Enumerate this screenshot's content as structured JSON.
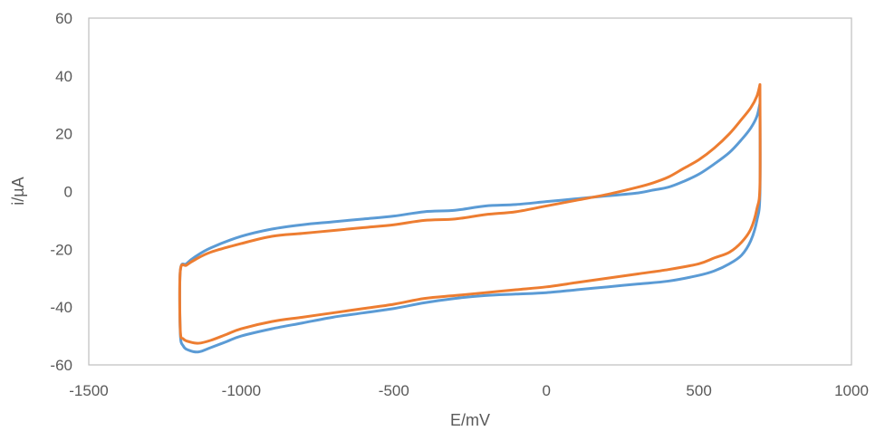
{
  "chart_data": {
    "type": "line",
    "title": "",
    "xlabel": "E/mV",
    "ylabel": "i/µA",
    "xlim": [
      -1500,
      1000
    ],
    "ylim": [
      -60,
      60
    ],
    "xticks": [
      -1500,
      -1000,
      -500,
      0,
      500,
      1000
    ],
    "yticks": [
      -60,
      -40,
      -20,
      0,
      20,
      40,
      60
    ],
    "grid": false,
    "legend": "none",
    "series": [
      {
        "color": "#5b9bd5",
        "x": [
          700,
          690,
          670,
          640,
          600,
          550,
          500,
          450,
          400,
          350,
          300,
          200,
          100,
          0,
          -100,
          -200,
          -300,
          -400,
          -500,
          -600,
          -700,
          -800,
          -900,
          -1000,
          -1100,
          -1150,
          -1180,
          -1200,
          -1200,
          -1190,
          -1170,
          -1140,
          -1100,
          -1050,
          -1000,
          -900,
          -800,
          -700,
          -600,
          -500,
          -400,
          -300,
          -200,
          -100,
          0,
          100,
          200,
          300,
          400,
          500,
          550,
          600,
          640,
          670,
          690,
          700,
          700
        ],
        "y": [
          30.5,
          26,
          22,
          18,
          13.5,
          9.5,
          6,
          3.5,
          1.5,
          0.5,
          -0.5,
          -1.5,
          -2.5,
          -3.5,
          -4.5,
          -5,
          -6.5,
          -7,
          -8.5,
          -9.5,
          -10.5,
          -11.5,
          -13,
          -15.5,
          -19.5,
          -22.5,
          -25,
          -27.5,
          -49,
          -53.5,
          -55,
          -55.5,
          -54,
          -52,
          -50,
          -47.5,
          -45.5,
          -43.5,
          -42,
          -40.5,
          -38.5,
          -37,
          -36,
          -35.5,
          -35,
          -34,
          -33,
          -32,
          -31,
          -29,
          -27.5,
          -25,
          -22,
          -17,
          -10,
          -1,
          31
        ]
      },
      {
        "color": "#ed7d31",
        "x": [
          700,
          690,
          670,
          640,
          600,
          550,
          500,
          450,
          400,
          350,
          300,
          200,
          100,
          0,
          -100,
          -200,
          -300,
          -400,
          -500,
          -600,
          -700,
          -800,
          -900,
          -1000,
          -1100,
          -1150,
          -1180,
          -1200,
          -1200,
          -1190,
          -1170,
          -1140,
          -1100,
          -1050,
          -1000,
          -900,
          -800,
          -700,
          -600,
          -500,
          -400,
          -300,
          -200,
          -100,
          0,
          100,
          200,
          300,
          400,
          500,
          550,
          600,
          640,
          670,
          690,
          700,
          700
        ],
        "y": [
          37,
          33,
          29,
          25,
          20,
          15,
          11,
          8,
          5,
          3,
          1.5,
          -1,
          -3,
          -5,
          -7,
          -8,
          -9.5,
          -10,
          -11.5,
          -12.5,
          -13.5,
          -14.5,
          -15.5,
          -18,
          -21,
          -23.5,
          -25.5,
          -27.5,
          -48,
          -51,
          -52,
          -52.5,
          -51.5,
          -49.5,
          -47.5,
          -45,
          -43.5,
          -42,
          -40.5,
          -39,
          -37,
          -36,
          -35,
          -34,
          -33,
          -31.5,
          -30,
          -28.5,
          -27,
          -25,
          -23,
          -21,
          -17.5,
          -13,
          -6,
          2.5,
          37
        ]
      }
    ]
  }
}
